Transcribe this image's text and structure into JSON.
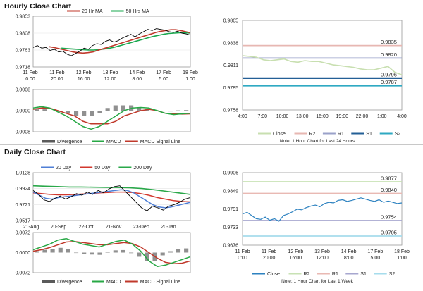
{
  "sections": {
    "hourly_title": "Hourly Close Chart",
    "daily_title": "Daily Close Chart"
  },
  "notes": {
    "hourly": "Note: 1 Hour Chart for Last 24 Hours",
    "daily": "Note: 1 Hour Chart for Last 1 Week"
  },
  "colors": {
    "price": "#000000",
    "ma20": "#c0392b",
    "ma50": "#1aa84f",
    "ma200": "#2aa84a",
    "daily_ma20": "#4f7fd6",
    "daily_ma50": "#d2382e",
    "macd": "#27a845",
    "signal": "#c0392b",
    "divergence": "#909090",
    "close_hourly": "#c8dfb0",
    "close_daily": "#2d82c0",
    "r2": "#e7b7b2",
    "r1": "#9aa1c9",
    "s1": "#235f96",
    "s2": "#2fa9c2",
    "daily_r2": "#c8e2b4",
    "daily_r1": "#e9b9b3",
    "daily_s1": "#a7a7cf",
    "daily_s2": "#a6dcec"
  },
  "chart_data": [
    {
      "id": "hourly-price",
      "type": "line",
      "title": "",
      "legend": [
        "20 Hr MA",
        "50 Hrs MA"
      ],
      "x_tick_labels": [
        [
          "11 Feb",
          "0:00"
        ],
        [
          "11 Feb",
          "20:00"
        ],
        [
          "12 Feb",
          "16:00"
        ],
        [
          "13 Feb",
          "12:00"
        ],
        [
          "14 Feb",
          "8:00"
        ],
        [
          "17 Feb",
          "5:00"
        ],
        [
          "18 Feb",
          "1:00"
        ]
      ],
      "y_tick_labels": [
        "0.9853",
        "0.9808",
        "0.9763",
        "0.9718"
      ],
      "ylim": [
        0.9718,
        0.9853
      ],
      "series": [
        {
          "name": "Price",
          "values": [
            0.977,
            0.9775,
            0.9768,
            0.977,
            0.9762,
            0.9765,
            0.9758,
            0.976,
            0.9752,
            0.9748,
            0.9754,
            0.976,
            0.9768,
            0.9765,
            0.9775,
            0.978,
            0.9778,
            0.9786,
            0.979,
            0.9784,
            0.9788,
            0.9795,
            0.98,
            0.9805,
            0.9798,
            0.9806,
            0.9812,
            0.9818,
            0.9815,
            0.982,
            0.9818,
            0.9816,
            0.9812,
            0.981,
            0.9813,
            0.9808,
            0.9806,
            0.9803
          ]
        },
        {
          "name": "20 Hr MA",
          "values": [
            0.9772,
            0.977,
            0.9767,
            0.9764,
            0.9761,
            0.9758,
            0.9756,
            0.9755,
            0.9756,
            0.9758,
            0.9762,
            0.9766,
            0.977,
            0.9774,
            0.9778,
            0.9782,
            0.9786,
            0.979,
            0.9794,
            0.9798,
            0.9802,
            0.9806,
            0.981,
            0.9813,
            0.9815,
            0.9817,
            0.9817,
            0.9815,
            0.9812,
            0.9809
          ]
        },
        {
          "name": "50 Hrs MA",
          "values": [
            0.9768,
            0.9767,
            0.9766,
            0.9765,
            0.9764,
            0.9763,
            0.9763,
            0.9764,
            0.9766,
            0.9768,
            0.9771,
            0.9775,
            0.9779,
            0.9783,
            0.9787,
            0.9791,
            0.9795,
            0.9799,
            0.9802,
            0.9805,
            0.9807,
            0.9808,
            0.9809,
            0.9809,
            0.9808
          ]
        }
      ]
    },
    {
      "id": "hourly-macd",
      "type": "line",
      "legend": [
        "Divergence",
        "MACD",
        "MACD Signal Line"
      ],
      "y_tick_labels": [
        "0.0008",
        "0.0000",
        "-0.0008"
      ],
      "ylim": [
        -0.0008,
        0.0008
      ],
      "series": [
        {
          "name": "MACD",
          "values": [
            0.0001,
            0.00015,
            0.0001,
            -5e-05,
            -0.0002,
            -0.0004,
            -0.0006,
            -0.0007,
            -0.0006,
            -0.0004,
            -0.0002,
            0.0,
            0.0001,
            0.00012,
            0.0001,
            0.0,
            -0.0001,
            -0.00015,
            -0.00012,
            -0.0001
          ]
        },
        {
          "name": "MACD Signal Line",
          "values": [
            5e-05,
            0.0001,
            0.0001,
            0.0,
            -0.0001,
            -0.0002,
            -0.0004,
            -0.0005,
            -0.0005,
            -0.0005,
            -0.0004,
            -0.0002,
            -0.0001,
            0.0,
            5e-05,
            0.0,
            -0.0001,
            -0.00012,
            -0.00013,
            -0.00012
          ]
        },
        {
          "name": "Divergence",
          "values": [
            5e-05,
            5e-05,
            0.0,
            -5e-05,
            -0.0001,
            -0.0002,
            -0.0002,
            -0.0002,
            -0.0001,
            0.0001,
            0.0002,
            0.0002,
            0.0002,
            0.00012,
            5e-05,
            0.0,
            0.0,
            -3e-05,
            1e-05,
            2e-05
          ]
        }
      ]
    },
    {
      "id": "hourly-pivots",
      "type": "line",
      "x_tick_labels": [
        "4:00",
        "7:00",
        "10:00",
        "13:00",
        "16:00",
        "19:00",
        "22:00",
        "1:00",
        "4:00"
      ],
      "y_tick_labels": [
        "0.9865",
        "0.9838",
        "0.9811",
        "0.9785",
        "0.9758"
      ],
      "ylim": [
        0.9758,
        0.9865
      ],
      "legend": [
        "Close",
        "R2",
        "R1",
        "S1",
        "S2"
      ],
      "levels": {
        "R2": 0.9835,
        "R1": 0.982,
        "S1": 0.9796,
        "S2": 0.9787
      },
      "level_labels": {
        "R2": "0.9835",
        "R1": "0.9820",
        "S1": "0.9796",
        "S2": "0.9787"
      },
      "series": [
        {
          "name": "Close",
          "values": [
            0.9823,
            0.9822,
            0.9821,
            0.9818,
            0.9817,
            0.9818,
            0.9819,
            0.9816,
            0.9815,
            0.9817,
            0.9816,
            0.9816,
            0.9814,
            0.9812,
            0.9811,
            0.981,
            0.9809,
            0.9807,
            0.9806,
            0.9806,
            0.9808,
            0.981,
            0.9803,
            0.98
          ]
        }
      ]
    },
    {
      "id": "daily-price",
      "type": "line",
      "legend": [
        "20 Day",
        "50 Day",
        "200 Day"
      ],
      "x_tick_labels": [
        "21-Aug",
        "20-Sep",
        "22-Oct",
        "21-Nov",
        "23-Dec",
        "20-Jan"
      ],
      "y_tick_labels": [
        "1.0128",
        "0.9924",
        "0.9721",
        "0.9517"
      ],
      "ylim": [
        0.9517,
        1.0128
      ],
      "series": [
        {
          "name": "Price",
          "values": [
            0.99,
            0.985,
            0.978,
            0.976,
            0.98,
            0.983,
            0.979,
            0.982,
            0.986,
            0.984,
            0.988,
            0.985,
            0.99,
            0.987,
            0.992,
            0.995,
            0.996,
            0.989,
            0.982,
            0.975,
            0.968,
            0.964,
            0.97,
            0.968,
            0.965,
            0.97,
            0.972,
            0.975,
            0.979,
            0.981
          ]
        },
        {
          "name": "20 Day",
          "values": [
            0.988,
            0.984,
            0.98,
            0.979,
            0.981,
            0.982,
            0.983,
            0.984,
            0.985,
            0.986,
            0.987,
            0.988,
            0.989,
            0.99,
            0.991,
            0.99,
            0.987,
            0.982,
            0.977,
            0.972,
            0.969,
            0.968,
            0.969,
            0.971,
            0.973,
            0.975
          ]
        },
        {
          "name": "50 Day",
          "values": [
            0.987,
            0.986,
            0.985,
            0.9845,
            0.9845,
            0.985,
            0.9855,
            0.986,
            0.987,
            0.9875,
            0.988,
            0.988,
            0.9875,
            0.986,
            0.984,
            0.981,
            0.979,
            0.977,
            0.976,
            0.9755
          ]
        },
        {
          "name": "200 Day",
          "values": [
            0.996,
            0.9955,
            0.995,
            0.9945,
            0.9945,
            0.9942,
            0.994,
            0.9938,
            0.9935,
            0.9925,
            0.991,
            0.989,
            0.987,
            0.985
          ]
        }
      ]
    },
    {
      "id": "daily-macd",
      "type": "line",
      "legend": [
        "Divergence",
        "MACD",
        "MACD Signal Line"
      ],
      "y_tick_labels": [
        "0.0072",
        "0.0000",
        "-0.0072"
      ],
      "ylim": [
        -0.0072,
        0.0072
      ],
      "series": [
        {
          "name": "MACD",
          "values": [
            0.001,
            0.002,
            0.003,
            0.0045,
            0.005,
            0.004,
            0.003,
            0.0025,
            0.002,
            0.003,
            0.004,
            0.0045,
            0.003,
            0.0005,
            -0.003,
            -0.005,
            -0.0045,
            -0.0035,
            -0.0025,
            -0.0015
          ]
        },
        {
          "name": "MACD Signal Line",
          "values": [
            0.0005,
            0.001,
            0.0018,
            0.0028,
            0.0038,
            0.004,
            0.0036,
            0.0032,
            0.0028,
            0.0028,
            0.0032,
            0.0036,
            0.0032,
            0.002,
            0.0,
            -0.002,
            -0.0035,
            -0.004,
            -0.0038,
            -0.003
          ]
        },
        {
          "name": "Divergence",
          "values": [
            0.0005,
            0.001,
            0.0012,
            0.0017,
            0.0012,
            0.0,
            -0.0006,
            -0.0007,
            -0.0008,
            0.0002,
            0.0008,
            0.0009,
            -0.0002,
            -0.0015,
            -0.003,
            -0.003,
            -0.001,
            0.0005,
            0.0013,
            0.0015
          ]
        }
      ]
    },
    {
      "id": "daily-pivots",
      "type": "line",
      "x_tick_labels": [
        [
          "11 Feb",
          "0:00"
        ],
        [
          "11 Feb",
          "20:00"
        ],
        [
          "12 Feb",
          "16:00"
        ],
        [
          "13 Feb",
          "12:00"
        ],
        [
          "14 Feb",
          "8:00"
        ],
        [
          "17 Feb",
          "5:00"
        ],
        [
          "18 Feb",
          "1:00"
        ]
      ],
      "y_tick_labels": [
        "0.9906",
        "0.9849",
        "0.9791",
        "0.9733",
        "0.9676"
      ],
      "ylim": [
        0.9676,
        0.9906
      ],
      "legend": [
        "Close",
        "R2",
        "R1",
        "S1",
        "S2"
      ],
      "levels": {
        "R2": 0.9877,
        "R1": 0.984,
        "S1": 0.9754,
        "S2": 0.9705
      },
      "level_labels": {
        "R2": "0.9877",
        "R1": "0.9840",
        "S1": "0.9754",
        "S2": "0.9705"
      },
      "series": [
        {
          "name": "Close",
          "values": [
            0.9775,
            0.978,
            0.977,
            0.976,
            0.9758,
            0.9765,
            0.9755,
            0.976,
            0.9752,
            0.977,
            0.9775,
            0.9782,
            0.979,
            0.9788,
            0.9795,
            0.98,
            0.9803,
            0.9798,
            0.9808,
            0.9812,
            0.981,
            0.9818,
            0.982,
            0.9815,
            0.9818,
            0.9822,
            0.9826,
            0.9822,
            0.9818,
            0.9815,
            0.982,
            0.9812,
            0.9816,
            0.9812,
            0.9808,
            0.981
          ]
        }
      ]
    }
  ]
}
